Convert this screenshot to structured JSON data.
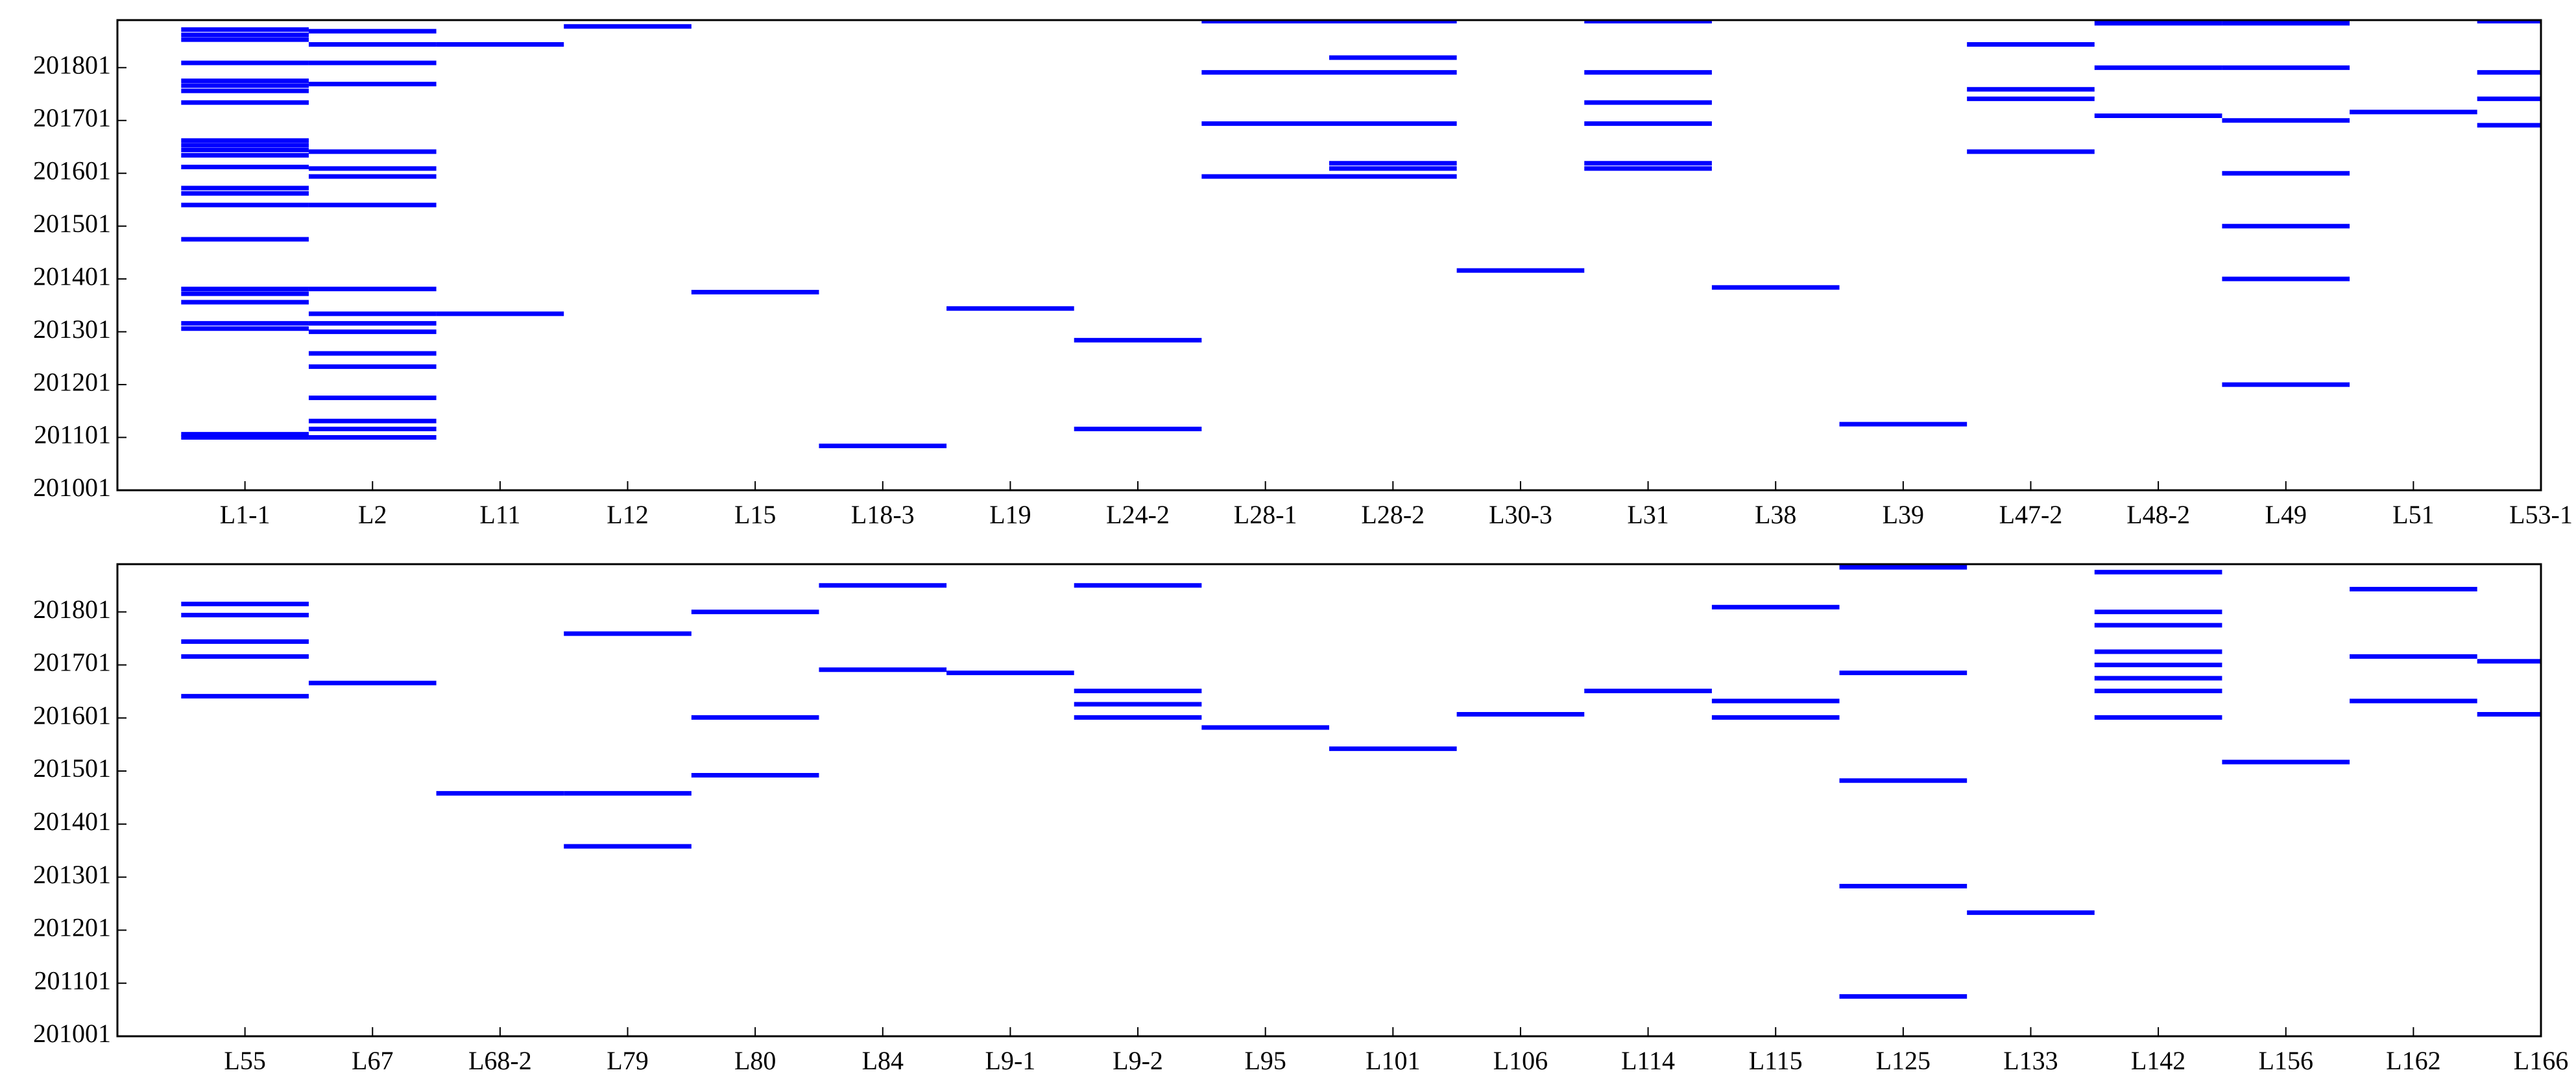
{
  "chart_data": [
    {
      "type": "event",
      "color": "#0000ff",
      "categories": [
        "L1-1",
        "L2",
        "L11",
        "L12",
        "L15",
        "L18-3",
        "L19",
        "L24-2",
        "L28-1",
        "L28-2",
        "L30-3",
        "L31",
        "L38",
        "L39",
        "L47-2",
        "L48-2",
        "L49",
        "L51",
        "L53-1"
      ],
      "values": [
        [
          201873,
          201863,
          201854,
          201810,
          201776,
          201767,
          201757,
          201735,
          201663,
          201654,
          201645,
          201635,
          201613,
          201573,
          201563,
          201541,
          201476,
          201382,
          201373,
          201357,
          201317,
          201307,
          201107,
          201101
        ],
        [
          201870,
          201845,
          201810,
          201770,
          201642,
          201610,
          201595,
          201541,
          201382,
          201335,
          201317,
          201301,
          201260,
          201235,
          201176,
          201132,
          201117,
          201101
        ],
        [
          201845,
          201335
        ],
        [
          201879
        ],
        [
          201376
        ],
        [
          201085
        ],
        [
          201345
        ],
        [
          201285,
          201117
        ],
        [
          201889,
          201792,
          201695,
          201595
        ],
        [
          201889,
          201820,
          201792,
          201695,
          201620,
          201610,
          201595
        ],
        [
          201417
        ],
        [
          201889,
          201792,
          201735,
          201695,
          201620,
          201610
        ],
        [
          201385
        ],
        [
          201126
        ],
        [
          201845,
          201760,
          201742,
          201642
        ],
        [
          201885,
          201801,
          201710
        ],
        [
          201885,
          201801,
          201701,
          201601,
          201501,
          201401,
          201201
        ],
        [
          201717
        ],
        [
          201889,
          201792,
          201742,
          201692
        ]
      ],
      "ylim": [
        201001,
        201891
      ],
      "yticks": [
        201001,
        201101,
        201201,
        201301,
        201401,
        201501,
        201601,
        201701,
        201801
      ]
    },
    {
      "type": "event",
      "color": "#0000ff",
      "categories": [
        "L55",
        "L67",
        "L68-2",
        "L79",
        "L80",
        "L84",
        "L9-1",
        "L9-2",
        "L95",
        "L101",
        "L106",
        "L114",
        "L115",
        "L125",
        "L133",
        "L142",
        "L156",
        "L162",
        "L166"
      ],
      "values": [
        [
          201816,
          201795,
          201745,
          201717,
          201642
        ],
        [
          201667
        ],
        [
          201459
        ],
        [
          201760,
          201459,
          201359
        ],
        [
          201801,
          201602,
          201493
        ],
        [
          201851,
          201692
        ],
        [
          201686
        ],
        [
          201851,
          201652,
          201627,
          201602
        ],
        [
          201583
        ],
        [
          201543
        ],
        [
          201608
        ],
        [
          201652
        ],
        [
          201810,
          201633,
          201602
        ],
        [
          201885,
          201686,
          201483,
          201284,
          201076
        ],
        [
          201234
        ],
        [
          201876,
          201801,
          201776,
          201726,
          201701,
          201676,
          201652,
          201602
        ],
        [
          201518
        ],
        [
          201844,
          201717,
          201633
        ],
        [
          201708,
          201608
        ]
      ],
      "ylim": [
        201001,
        201891
      ],
      "yticks": [
        201001,
        201101,
        201201,
        201301,
        201401,
        201501,
        201601,
        201701,
        201801
      ]
    }
  ]
}
